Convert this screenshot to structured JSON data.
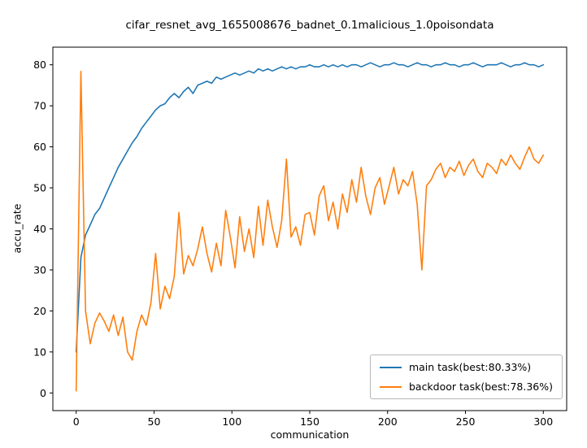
{
  "chart_data": {
    "type": "line",
    "title": "cifar_resnet_avg_1655008676_badnet_0.1malicious_1.0poisondata",
    "xlabel": "communication",
    "ylabel": "accu_rate",
    "xlim": [
      -15,
      315
    ],
    "ylim": [
      -4.3,
      84.3
    ],
    "xticks": [
      0,
      50,
      100,
      150,
      200,
      250,
      300
    ],
    "yticks": [
      0,
      10,
      20,
      30,
      40,
      50,
      60,
      70,
      80
    ],
    "grid": false,
    "legend_position": "lower right",
    "x": [
      0,
      3,
      6,
      9,
      12,
      15,
      18,
      21,
      24,
      27,
      30,
      33,
      36,
      39,
      42,
      45,
      48,
      51,
      54,
      57,
      60,
      63,
      66,
      69,
      72,
      75,
      78,
      81,
      84,
      87,
      90,
      93,
      96,
      99,
      102,
      105,
      108,
      111,
      114,
      117,
      120,
      123,
      126,
      129,
      132,
      135,
      138,
      141,
      144,
      147,
      150,
      153,
      156,
      159,
      162,
      165,
      168,
      171,
      174,
      177,
      180,
      183,
      186,
      189,
      192,
      195,
      198,
      201,
      204,
      207,
      210,
      213,
      216,
      219,
      222,
      225,
      228,
      231,
      234,
      237,
      240,
      243,
      246,
      249,
      252,
      255,
      258,
      261,
      264,
      267,
      270,
      273,
      276,
      279,
      282,
      285,
      288,
      291,
      294,
      297,
      300
    ],
    "series": [
      {
        "name": "main task(best:80.33%)",
        "color": "#1f77b4",
        "values": [
          10,
          33,
          38.5,
          41,
          43.5,
          45,
          47.5,
          50,
          52.5,
          55,
          57,
          59,
          61,
          62.5,
          64.5,
          66,
          67.5,
          69,
          70,
          70.5,
          72,
          73,
          72,
          73.5,
          74.5,
          73,
          75,
          75.5,
          76,
          75.5,
          77,
          76.5,
          77,
          77.5,
          78,
          77.5,
          78,
          78.5,
          78,
          79,
          78.5,
          79,
          78.5,
          79,
          79.5,
          79,
          79.5,
          79,
          79.5,
          79.5,
          80,
          79.5,
          79.5,
          80,
          79.5,
          80,
          79.5,
          80,
          79.5,
          80,
          80,
          79.5,
          80,
          80.5,
          80,
          79.5,
          80,
          80,
          80.5,
          80,
          80,
          79.5,
          80,
          80.5,
          80,
          80,
          79.5,
          80,
          80,
          80.5,
          80,
          80,
          79.5,
          80,
          80,
          80.5,
          80,
          79.5,
          80,
          80,
          80,
          80.5,
          80,
          79.5,
          80,
          80,
          80.5,
          80,
          80,
          79.5,
          80
        ]
      },
      {
        "name": "backdoor task(best:78.36%)",
        "color": "#ff7f0e",
        "values": [
          0.5,
          78.4,
          20,
          12,
          17,
          19.5,
          17.5,
          15,
          19,
          14,
          18.5,
          10,
          8,
          15,
          19,
          16.5,
          22,
          34,
          20.5,
          26,
          23,
          28.5,
          44,
          29,
          33.5,
          31,
          35,
          40.5,
          34,
          29.5,
          36.5,
          31,
          44.5,
          38,
          30.5,
          43,
          34.5,
          40,
          33,
          45.5,
          36,
          47,
          40.5,
          35.5,
          42,
          57,
          38,
          40.5,
          36,
          43.5,
          44,
          38.5,
          48,
          50.5,
          42,
          46.5,
          40,
          48.5,
          44,
          52,
          46.5,
          55,
          48,
          43.5,
          50,
          52.5,
          46,
          50.5,
          55,
          48.5,
          52,
          50.5,
          54,
          46,
          30,
          50.5,
          52,
          54.5,
          56,
          52.5,
          55,
          54,
          56.5,
          53,
          55.5,
          57,
          54,
          52.5,
          56,
          55,
          53.5,
          57,
          55.5,
          58,
          56,
          54.5,
          57.5,
          60,
          57,
          56,
          58
        ]
      }
    ]
  }
}
